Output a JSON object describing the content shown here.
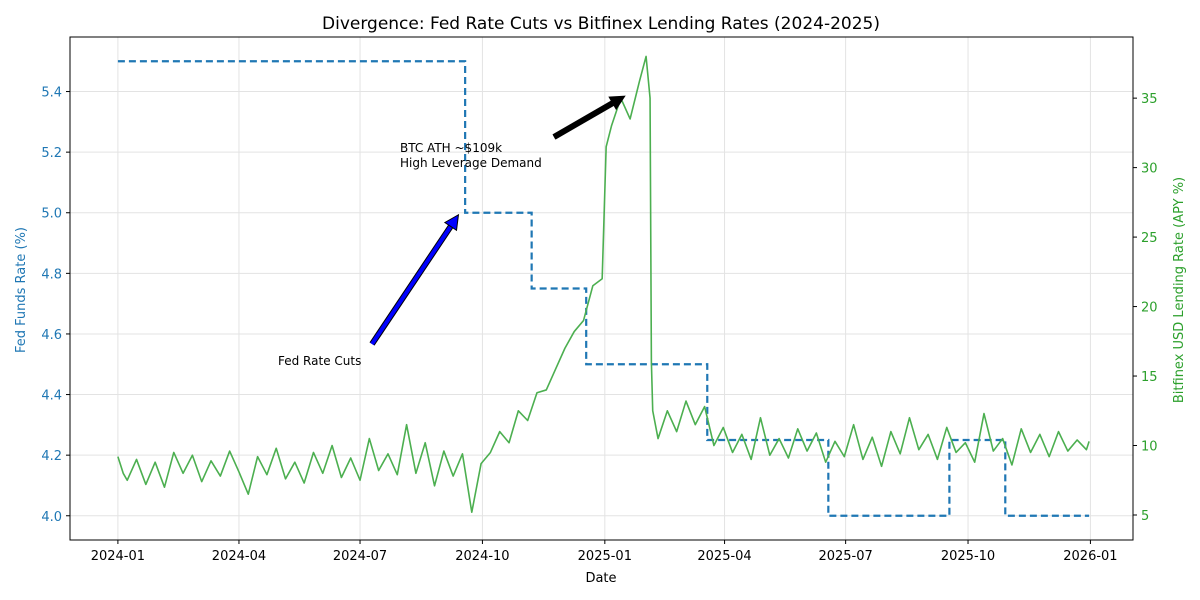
{
  "chart_data": {
    "type": "line",
    "title": "Divergence: Fed Rate Cuts vs Bitfinex Lending Rates (2024-2025)",
    "xlabel": "Date",
    "ylabel_left": "Fed Funds Rate (%)",
    "ylabel_right": "Bitfinex USD Lending Rate (APY %)",
    "x_ticks": [
      "2024-01",
      "2024-04",
      "2024-07",
      "2024-10",
      "2025-01",
      "2025-04",
      "2025-07",
      "2025-10",
      "2026-01"
    ],
    "y_left_ticks": [
      "4.0",
      "4.2",
      "4.4",
      "4.6",
      "4.8",
      "5.0",
      "5.2",
      "5.4"
    ],
    "y_right_ticks": [
      "5",
      "10",
      "15",
      "20",
      "25",
      "30",
      "35"
    ],
    "xlim": [
      "2023-11-26",
      "2026-02-02"
    ],
    "ylim_left": [
      3.92,
      5.58
    ],
    "ylim_right": [
      3.2,
      39.4
    ],
    "grid": true,
    "colors": {
      "fed": "#1f77b4",
      "bitfinex": "#4caf50",
      "left_axis": "#1f77b4",
      "right_axis": "#2ca02c",
      "annotation_btc": "#000000",
      "annotation_fed": "#0000ff"
    },
    "series": [
      {
        "axis": "left",
        "style": "dashed-step",
        "points": [
          [
            "2024-01-01",
            5.5
          ],
          [
            "2024-09-18",
            5.0
          ],
          [
            "2024-11-07",
            4.75
          ],
          [
            "2024-12-18",
            4.5
          ],
          [
            "2025-03-19",
            4.25
          ],
          [
            "2025-06-18",
            4.0
          ],
          [
            "2025-09-17",
            4.25
          ],
          [
            "2025-10-29",
            4.0
          ],
          [
            "2025-12-31",
            4.0
          ]
        ]
      },
      {
        "axis": "right",
        "style": "solid",
        "points": [
          [
            "2024-01-01",
            9.2
          ],
          [
            "2024-01-05",
            8.0
          ],
          [
            "2024-01-08",
            7.5
          ],
          [
            "2024-01-15",
            9.0
          ],
          [
            "2024-01-22",
            7.2
          ],
          [
            "2024-01-29",
            8.8
          ],
          [
            "2024-02-05",
            7.0
          ],
          [
            "2024-02-12",
            9.5
          ],
          [
            "2024-02-19",
            8.0
          ],
          [
            "2024-02-26",
            9.3
          ],
          [
            "2024-03-04",
            7.4
          ],
          [
            "2024-03-11",
            8.9
          ],
          [
            "2024-03-18",
            7.8
          ],
          [
            "2024-03-25",
            9.6
          ],
          [
            "2024-04-01",
            8.1
          ],
          [
            "2024-04-08",
            6.5
          ],
          [
            "2024-04-15",
            9.2
          ],
          [
            "2024-04-22",
            7.9
          ],
          [
            "2024-04-29",
            9.8
          ],
          [
            "2024-05-06",
            7.6
          ],
          [
            "2024-05-13",
            8.8
          ],
          [
            "2024-05-20",
            7.3
          ],
          [
            "2024-05-27",
            9.5
          ],
          [
            "2024-06-03",
            8.0
          ],
          [
            "2024-06-10",
            10.0
          ],
          [
            "2024-06-17",
            7.7
          ],
          [
            "2024-06-24",
            9.1
          ],
          [
            "2024-07-01",
            7.5
          ],
          [
            "2024-07-08",
            10.5
          ],
          [
            "2024-07-15",
            8.2
          ],
          [
            "2024-07-22",
            9.4
          ],
          [
            "2024-07-29",
            7.9
          ],
          [
            "2024-08-05",
            11.5
          ],
          [
            "2024-08-12",
            8.0
          ],
          [
            "2024-08-19",
            10.2
          ],
          [
            "2024-08-26",
            7.1
          ],
          [
            "2024-09-02",
            9.6
          ],
          [
            "2024-09-09",
            7.8
          ],
          [
            "2024-09-16",
            9.4
          ],
          [
            "2024-09-23",
            5.2
          ],
          [
            "2024-09-30",
            8.7
          ],
          [
            "2024-10-07",
            9.5
          ],
          [
            "2024-10-14",
            11.0
          ],
          [
            "2024-10-21",
            10.2
          ],
          [
            "2024-10-28",
            12.5
          ],
          [
            "2024-11-04",
            11.8
          ],
          [
            "2024-11-11",
            13.8
          ],
          [
            "2024-11-18",
            14.0
          ],
          [
            "2024-11-25",
            15.5
          ],
          [
            "2024-12-02",
            17.0
          ],
          [
            "2024-12-09",
            18.2
          ],
          [
            "2024-12-16",
            19.0
          ],
          [
            "2024-12-23",
            21.5
          ],
          [
            "2024-12-30",
            22.0
          ],
          [
            "2025-01-02",
            31.5
          ],
          [
            "2025-01-06",
            33.0
          ],
          [
            "2025-01-13",
            35.0
          ],
          [
            "2025-01-20",
            33.5
          ],
          [
            "2025-01-27",
            36.2
          ],
          [
            "2025-02-01",
            38.0
          ],
          [
            "2025-02-04",
            35.0
          ],
          [
            "2025-02-05",
            16.0
          ],
          [
            "2025-02-06",
            12.5
          ],
          [
            "2025-02-10",
            10.5
          ],
          [
            "2025-02-17",
            12.5
          ],
          [
            "2025-02-24",
            11.0
          ],
          [
            "2025-03-03",
            13.2
          ],
          [
            "2025-03-10",
            11.5
          ],
          [
            "2025-03-17",
            12.8
          ],
          [
            "2025-03-24",
            10.0
          ],
          [
            "2025-03-31",
            11.3
          ],
          [
            "2025-04-07",
            9.5
          ],
          [
            "2025-04-14",
            10.8
          ],
          [
            "2025-04-21",
            9.0
          ],
          [
            "2025-04-28",
            12.0
          ],
          [
            "2025-05-05",
            9.3
          ],
          [
            "2025-05-12",
            10.5
          ],
          [
            "2025-05-19",
            9.1
          ],
          [
            "2025-05-26",
            11.2
          ],
          [
            "2025-06-02",
            9.6
          ],
          [
            "2025-06-09",
            10.9
          ],
          [
            "2025-06-16",
            8.8
          ],
          [
            "2025-06-23",
            10.3
          ],
          [
            "2025-06-30",
            9.2
          ],
          [
            "2025-07-07",
            11.5
          ],
          [
            "2025-07-14",
            9.0
          ],
          [
            "2025-07-21",
            10.6
          ],
          [
            "2025-07-28",
            8.5
          ],
          [
            "2025-08-04",
            11.0
          ],
          [
            "2025-08-11",
            9.4
          ],
          [
            "2025-08-18",
            12.0
          ],
          [
            "2025-08-25",
            9.7
          ],
          [
            "2025-09-01",
            10.8
          ],
          [
            "2025-09-08",
            9.0
          ],
          [
            "2025-09-15",
            11.3
          ],
          [
            "2025-09-22",
            9.5
          ],
          [
            "2025-09-29",
            10.2
          ],
          [
            "2025-10-06",
            8.8
          ],
          [
            "2025-10-13",
            12.3
          ],
          [
            "2025-10-20",
            9.6
          ],
          [
            "2025-10-27",
            10.5
          ],
          [
            "2025-11-03",
            8.6
          ],
          [
            "2025-11-10",
            11.2
          ],
          [
            "2025-11-17",
            9.5
          ],
          [
            "2025-11-24",
            10.8
          ],
          [
            "2025-12-01",
            9.2
          ],
          [
            "2025-12-08",
            11.0
          ],
          [
            "2025-12-15",
            9.6
          ],
          [
            "2025-12-22",
            10.4
          ],
          [
            "2025-12-29",
            9.7
          ],
          [
            "2025-12-31",
            10.3
          ]
        ]
      }
    ],
    "annotations": [
      {
        "text": "Fed Rate Cuts",
        "target": [
          "2024-09-13",
          5.0
        ],
        "axis": "left"
      },
      {
        "text_lines": [
          "BTC ATH ~$109k",
          "High Leverage Demand"
        ],
        "target": [
          "2025-01-16",
          35
        ],
        "axis": "right"
      }
    ]
  }
}
